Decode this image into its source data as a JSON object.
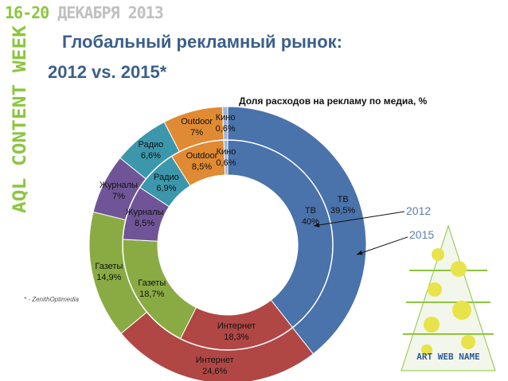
{
  "banner": {
    "dates": "16-20",
    "month": "ДЕКАБРЯ 2013"
  },
  "logo": {
    "text": "AQL CONTENT WEEK"
  },
  "title": {
    "line1": "Глобальный рекламный рынок:",
    "line2": "2012 vs. 2015*"
  },
  "source_note": "* - ZenithOptimedia",
  "tree_logo": {
    "text": "ART WEB NAME"
  },
  "colors": {
    "TV": "#4a72ab",
    "Internet": "#b04745",
    "Newspapers": "#8aab44",
    "Magazines": "#6f5597",
    "Radio": "#3c97ad",
    "Outdoor": "#e08a33",
    "Cinema": "#9fb5d8",
    "title": "#3b5f8a",
    "year_label": "#5b7fb0"
  },
  "chart_data": {
    "type": "donut",
    "title": "Доля расходов на рекламу по медиа, %",
    "categories": [
      "ТВ",
      "Интернет",
      "Газеты",
      "Журналы",
      "Радио",
      "Outdoor",
      "Кино"
    ],
    "series": [
      {
        "name": "2012",
        "ring": "inner",
        "values": [
          40,
          18.3,
          18.7,
          8.5,
          6.9,
          8.5,
          0.6
        ],
        "labels": [
          "40%",
          "18,3%",
          "18,7%",
          "8,5%",
          "6,9%",
          "8,5%",
          "0,6%"
        ]
      },
      {
        "name": "2015",
        "ring": "outer",
        "values": [
          39.5,
          24.6,
          14.9,
          7,
          6.6,
          7,
          0.6
        ],
        "labels": [
          "39,5%",
          "24,6%",
          "14,9%",
          "7%",
          "6,6%",
          "7%",
          "0,6%"
        ]
      }
    ],
    "year_labels": [
      "2012",
      "2015"
    ]
  }
}
